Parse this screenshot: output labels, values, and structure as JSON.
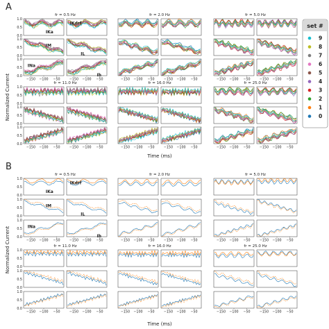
{
  "panels": [
    {
      "letter": "A",
      "ylabel": "Normalized Current",
      "xlabel": "Time (ms)",
      "freq_labels": [
        "fr = 0.5 Hz",
        "fr = 2.0 Hz",
        "fr = 5.0 Hz",
        "fr = 11.0 Hz",
        "fr = 16.0 Hz",
        "fr = 25.0 Hz"
      ],
      "current_labels": [
        "IKa",
        "IKdrf",
        "IM",
        "IL",
        "INa",
        "Ih"
      ],
      "y_ticks": [
        "1.0",
        "0.5",
        "0.0"
      ],
      "x_ticks": [
        "−150",
        "−100",
        "−50"
      ],
      "n_series": 10
    },
    {
      "letter": "B",
      "ylabel": "Normalized Current",
      "xlabel": "Time (ms)",
      "freq_labels": [
        "fr = 0.5 Hz",
        "fr = 2.0 Hz",
        "fr = 5.0 Hz",
        "fr = 11.0 Hz",
        "fr = 16.0 Hz",
        "fr = 25.0 Hz"
      ],
      "current_labels": [
        "IKa",
        "IKdrf",
        "IM",
        "IL",
        "INa",
        "Ih"
      ],
      "y_ticks": [
        "1.0",
        "0.5",
        "0.0"
      ],
      "x_ticks": [
        "−150",
        "−100",
        "−50"
      ],
      "n_series": 2
    }
  ],
  "legend": {
    "title": "set #",
    "entries": [
      {
        "label": "9",
        "color": "#17becf"
      },
      {
        "label": "8",
        "color": "#bcbd22"
      },
      {
        "label": "7",
        "color": "#7f7f7f"
      },
      {
        "label": "6",
        "color": "#e377c2"
      },
      {
        "label": "5",
        "color": "#8c564b"
      },
      {
        "label": "4",
        "color": "#9467bd"
      },
      {
        "label": "3",
        "color": "#d62728"
      },
      {
        "label": "2",
        "color": "#2ca02c"
      },
      {
        "label": "1",
        "color": "#ff7f0e"
      },
      {
        "label": "0",
        "color": "#1f77b4"
      }
    ]
  },
  "chart_data": [
    {
      "type": "line",
      "panel": "A",
      "xlabel": "Time (ms)",
      "ylabel": "Normalized Current",
      "xlim": [
        -175,
        -25
      ],
      "ylim": [
        0,
        1
      ],
      "frequencies_hz": [
        0.5,
        2.0,
        5.0,
        11.0,
        16.0,
        25.0
      ],
      "currents": [
        "IKa",
        "IKdrf",
        "IM",
        "IL",
        "INa",
        "Ih"
      ],
      "current_trends": {
        "IKa": "flat-high",
        "IKdrf": "flat-high",
        "IM": "decreasing",
        "IL": "decreasing",
        "INa": "increasing",
        "Ih": "increasing"
      },
      "series_count": 10
    },
    {
      "type": "line",
      "panel": "B",
      "xlabel": "Time (ms)",
      "ylabel": "Normalized Current",
      "xlim": [
        -175,
        -25
      ],
      "ylim": [
        0,
        1
      ],
      "frequencies_hz": [
        0.5,
        2.0,
        5.0,
        11.0,
        16.0,
        25.0
      ],
      "currents": [
        "IKa",
        "IKdrf",
        "IM",
        "IL",
        "INa",
        "Ih"
      ],
      "current_trends": {
        "IKa": "flat-high",
        "IKdrf": "flat-high",
        "IM": "decreasing",
        "IL": "decreasing",
        "INa": "increasing",
        "Ih": "increasing"
      },
      "series_count": 2
    }
  ]
}
